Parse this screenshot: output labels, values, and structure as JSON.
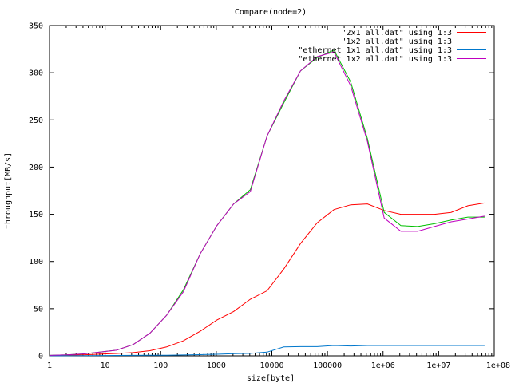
{
  "chart_data": {
    "type": "line",
    "title": "Compare(node=2)",
    "xlabel": "size[byte]",
    "ylabel": "throughput[MB/s]",
    "xscale": "log",
    "xlim": [
      1,
      100000000
    ],
    "ylim": [
      0,
      350
    ],
    "grid": false,
    "legend_position": "top-right",
    "x_ticks": [
      {
        "value": 1,
        "label": "1"
      },
      {
        "value": 10,
        "label": "10"
      },
      {
        "value": 100,
        "label": "100"
      },
      {
        "value": 1000,
        "label": "1000"
      },
      {
        "value": 10000,
        "label": "10000"
      },
      {
        "value": 100000,
        "label": "100000"
      },
      {
        "value": 1000000,
        "label": "1e+06"
      },
      {
        "value": 10000000,
        "label": "1e+07"
      },
      {
        "value": 100000000,
        "label": "1e+08"
      }
    ],
    "y_ticks": [
      0,
      50,
      100,
      150,
      200,
      250,
      300,
      350
    ],
    "series": [
      {
        "name": "\"2x1 all.dat\" using 1:3",
        "color": "#ff0000",
        "points": [
          [
            1,
            0.3
          ],
          [
            2,
            0.6
          ],
          [
            4,
            1
          ],
          [
            8,
            1.8
          ],
          [
            16,
            2.5
          ],
          [
            32,
            3.5
          ],
          [
            64,
            5.5
          ],
          [
            128,
            9.5
          ],
          [
            256,
            16
          ],
          [
            512,
            26
          ],
          [
            1024,
            38
          ],
          [
            2048,
            47
          ],
          [
            4096,
            60
          ],
          [
            8192,
            69
          ],
          [
            16384,
            92
          ],
          [
            32768,
            119
          ],
          [
            65536,
            141
          ],
          [
            131072,
            155
          ],
          [
            262144,
            160
          ],
          [
            524288,
            161
          ],
          [
            1048576,
            154
          ],
          [
            2097152,
            150
          ],
          [
            4194304,
            150
          ],
          [
            8388608,
            150
          ],
          [
            16777216,
            152
          ],
          [
            33554432,
            159
          ],
          [
            67108864,
            162
          ]
        ]
      },
      {
        "name": "\"1x2 all.dat\" using 1:3",
        "color": "#00bf00",
        "points": [
          [
            1,
            0.5
          ],
          [
            2,
            1
          ],
          [
            4,
            2
          ],
          [
            8,
            4
          ],
          [
            16,
            6
          ],
          [
            32,
            12
          ],
          [
            64,
            24
          ],
          [
            128,
            43
          ],
          [
            256,
            70
          ],
          [
            512,
            108
          ],
          [
            1024,
            138
          ],
          [
            2048,
            161
          ],
          [
            4096,
            176
          ],
          [
            8192,
            233
          ],
          [
            16384,
            268
          ],
          [
            32768,
            302
          ],
          [
            65536,
            316
          ],
          [
            131072,
            324
          ],
          [
            262144,
            290
          ],
          [
            524288,
            230
          ],
          [
            1048576,
            152
          ],
          [
            2097152,
            138
          ],
          [
            4194304,
            137
          ],
          [
            8388608,
            140
          ],
          [
            16777216,
            144
          ],
          [
            33554432,
            147
          ],
          [
            67108864,
            147
          ]
        ]
      },
      {
        "name": "\"ethernet 1x1 all.dat\" using 1:3",
        "color": "#0077cc",
        "points": [
          [
            1,
            0.1
          ],
          [
            2,
            0.1
          ],
          [
            4,
            0.2
          ],
          [
            8,
            0.3
          ],
          [
            16,
            0.4
          ],
          [
            32,
            0.5
          ],
          [
            64,
            0.6
          ],
          [
            128,
            0.7
          ],
          [
            256,
            0.9
          ],
          [
            512,
            1.3
          ],
          [
            1024,
            1.7
          ],
          [
            2048,
            2.4
          ],
          [
            4096,
            2.6
          ],
          [
            8192,
            4
          ],
          [
            16384,
            9.5
          ],
          [
            32768,
            9.8
          ],
          [
            65536,
            9.8
          ],
          [
            131072,
            11
          ],
          [
            262144,
            10.5
          ],
          [
            524288,
            11
          ],
          [
            1048576,
            11
          ],
          [
            2097152,
            11
          ],
          [
            4194304,
            11
          ],
          [
            8388608,
            11
          ],
          [
            16777216,
            11
          ],
          [
            33554432,
            11
          ],
          [
            67108864,
            11
          ]
        ]
      },
      {
        "name": "\"ethernet 1x2 all.dat\" using 1:3",
        "color": "#bf00bf",
        "points": [
          [
            1,
            0.5
          ],
          [
            2,
            1
          ],
          [
            4,
            2
          ],
          [
            8,
            4
          ],
          [
            16,
            6
          ],
          [
            32,
            12
          ],
          [
            64,
            24
          ],
          [
            128,
            43
          ],
          [
            256,
            68
          ],
          [
            512,
            108
          ],
          [
            1024,
            138
          ],
          [
            2048,
            161
          ],
          [
            4096,
            174
          ],
          [
            8192,
            233
          ],
          [
            16384,
            270
          ],
          [
            32768,
            302
          ],
          [
            65536,
            317
          ],
          [
            131072,
            322
          ],
          [
            262144,
            286
          ],
          [
            524288,
            227
          ],
          [
            1048576,
            146
          ],
          [
            2097152,
            132
          ],
          [
            4194304,
            132
          ],
          [
            8388608,
            137
          ],
          [
            16777216,
            142
          ],
          [
            33554432,
            145
          ],
          [
            67108864,
            148
          ]
        ]
      }
    ]
  }
}
